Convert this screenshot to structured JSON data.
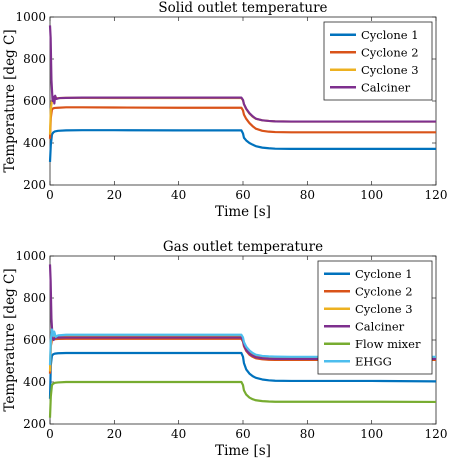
{
  "chart_data": [
    {
      "type": "line",
      "title": "Solid outlet temperature",
      "xlabel": "Time [s]",
      "ylabel": "Temperature [deg C]",
      "xlim": [
        0,
        120
      ],
      "ylim": [
        200,
        1000
      ],
      "xticks": [
        0,
        20,
        40,
        60,
        80,
        100,
        120
      ],
      "yticks": [
        200,
        400,
        600,
        800,
        1000
      ],
      "grid": false,
      "legend_position": "top-right",
      "series": [
        {
          "name": "Cyclone 1",
          "color": "#0072BD",
          "x": [
            0,
            0.25,
            0.6,
            1.0,
            1.5,
            2.5,
            5,
            10,
            20,
            40,
            59.5,
            60,
            60.3,
            61,
            62,
            63,
            64,
            66,
            68,
            70,
            75,
            80,
            100,
            120
          ],
          "y": [
            310,
            390,
            440,
            450,
            455,
            458,
            460,
            461,
            461,
            460,
            460,
            445,
            425,
            412,
            400,
            392,
            385,
            378,
            375,
            373,
            372,
            372,
            372,
            372
          ]
        },
        {
          "name": "Cyclone 2",
          "color": "#D95319",
          "x": [
            0,
            0.25,
            0.6,
            1.0,
            1.5,
            2.5,
            5,
            10,
            20,
            40,
            59.5,
            60,
            60.3,
            61,
            62,
            63,
            64,
            66,
            68,
            70,
            75,
            80,
            100,
            120
          ],
          "y": [
            420,
            520,
            560,
            565,
            567,
            568,
            570,
            570,
            569,
            568,
            568,
            555,
            535,
            515,
            495,
            480,
            468,
            458,
            454,
            452,
            451,
            451,
            451,
            451
          ]
        },
        {
          "name": "Cyclone 3",
          "color": "#EDB120",
          "x": [
            0,
            0.25,
            0.6,
            1.0,
            1.5,
            2.5,
            5,
            10,
            20,
            40,
            59.5,
            60,
            60.3,
            61,
            62,
            63,
            64,
            66,
            68,
            70,
            75,
            80,
            100,
            120
          ],
          "y": [
            440,
            560,
            600,
            608,
            612,
            614,
            615,
            615,
            614,
            614,
            614,
            603,
            585,
            562,
            540,
            525,
            515,
            508,
            505,
            503,
            502,
            502,
            502,
            502
          ]
        },
        {
          "name": "Calciner",
          "color": "#7E2F8E",
          "x": [
            0,
            0.2,
            0.45,
            0.8,
            1.1,
            1.35,
            1.6,
            2.0,
            2.5,
            3,
            5,
            10,
            20,
            40,
            59.5,
            60,
            60.3,
            61,
            62,
            63,
            64,
            66,
            68,
            70,
            75,
            80,
            100,
            120
          ],
          "y": [
            960,
            900,
            700,
            600,
            620,
            588,
            625,
            610,
            612,
            614,
            615,
            616,
            616,
            616,
            616,
            605,
            585,
            563,
            542,
            527,
            516,
            508,
            505,
            503,
            502,
            502,
            502,
            502
          ]
        }
      ]
    },
    {
      "type": "line",
      "title": "Gas outlet temperature",
      "xlabel": "Time [s]",
      "ylabel": "Temperature [deg C]",
      "xlim": [
        0,
        120
      ],
      "ylim": [
        200,
        1000
      ],
      "xticks": [
        0,
        20,
        40,
        60,
        80,
        100,
        120
      ],
      "yticks": [
        200,
        400,
        600,
        800,
        1000
      ],
      "grid": false,
      "legend_position": "top-right",
      "series": [
        {
          "name": "Cyclone 1",
          "color": "#0072BD",
          "x": [
            0,
            0.25,
            0.6,
            1.0,
            1.5,
            2.5,
            5,
            10,
            20,
            40,
            59.5,
            60,
            60.3,
            61,
            62,
            63,
            64,
            66,
            68,
            70,
            75,
            80,
            100,
            120
          ],
          "y": [
            320,
            480,
            525,
            532,
            535,
            537,
            538,
            538,
            538,
            538,
            538,
            520,
            490,
            460,
            440,
            428,
            420,
            412,
            408,
            406,
            405,
            405,
            405,
            403
          ]
        },
        {
          "name": "Cyclone 2",
          "color": "#D95319",
          "x": [
            0,
            0.25,
            0.6,
            1.0,
            1.5,
            2.5,
            5,
            10,
            20,
            40,
            59.5,
            60,
            60.3,
            61,
            62,
            63,
            64,
            66,
            68,
            70,
            75,
            80,
            100,
            120
          ],
          "y": [
            440,
            570,
            600,
            603,
            604,
            605,
            606,
            606,
            606,
            606,
            606,
            592,
            570,
            548,
            530,
            520,
            513,
            508,
            506,
            505,
            505,
            505,
            505,
            505
          ]
        },
        {
          "name": "Cyclone 3",
          "color": "#EDB120",
          "x": [
            0,
            0.25,
            0.6,
            1.0,
            1.5,
            2.5,
            5,
            10,
            20,
            40,
            59.5,
            60,
            60.3,
            61,
            62,
            63,
            64,
            66,
            68,
            70,
            75,
            80,
            100,
            120
          ],
          "y": [
            450,
            585,
            615,
            617,
            618,
            619,
            620,
            620,
            620,
            620,
            620,
            606,
            584,
            560,
            542,
            532,
            525,
            520,
            518,
            517,
            517,
            517,
            517,
            516
          ]
        },
        {
          "name": "Calciner",
          "color": "#7E2F8E",
          "x": [
            0,
            0.2,
            0.45,
            0.8,
            1.1,
            1.5,
            2.0,
            3,
            5,
            10,
            20,
            40,
            59.5,
            60,
            60.3,
            61,
            62,
            63,
            64,
            66,
            68,
            70,
            75,
            80,
            100,
            120
          ],
          "y": [
            960,
            880,
            700,
            610,
            600,
            610,
            612,
            612,
            612,
            612,
            612,
            612,
            612,
            598,
            576,
            552,
            535,
            525,
            518,
            513,
            511,
            510,
            510,
            510,
            510,
            510
          ]
        },
        {
          "name": "Flow mixer",
          "color": "#77AC30",
          "x": [
            0,
            0.25,
            0.6,
            1.0,
            1.5,
            2.5,
            5,
            10,
            20,
            40,
            59.5,
            60,
            60.3,
            61,
            62,
            63,
            64,
            66,
            68,
            70,
            75,
            80,
            100,
            120
          ],
          "y": [
            230,
            330,
            385,
            392,
            396,
            398,
            400,
            400,
            400,
            400,
            400,
            385,
            360,
            340,
            326,
            318,
            313,
            309,
            307,
            306,
            306,
            306,
            306,
            305
          ]
        },
        {
          "name": "EHGG",
          "color": "#4DBEEE",
          "x": [
            0,
            0.25,
            0.6,
            1.0,
            1.3,
            1.8,
            2.5,
            5,
            10,
            20,
            40,
            59.5,
            60,
            60.3,
            61,
            62,
            63,
            64,
            66,
            68,
            70,
            75,
            80,
            100,
            120
          ],
          "y": [
            480,
            600,
            650,
            620,
            640,
            615,
            622,
            625,
            625,
            625,
            625,
            625,
            612,
            590,
            568,
            550,
            538,
            530,
            524,
            522,
            521,
            520,
            520,
            520,
            520
          ]
        }
      ]
    }
  ]
}
